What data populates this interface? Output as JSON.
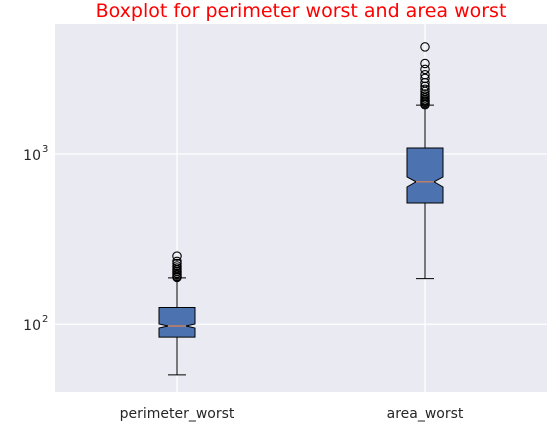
{
  "chart_data": {
    "type": "boxplot",
    "title": "Boxplot for perimeter worst and area worst",
    "xlabel": "",
    "ylabel": "",
    "yscale": "log",
    "ylim": [
      40,
      5800
    ],
    "grid": true,
    "notched": true,
    "categories": [
      "perimeter_worst",
      "area_worst"
    ],
    "y_ticks": [
      {
        "value": 100,
        "base": "10",
        "exp": "2"
      },
      {
        "value": 1000,
        "base": "10",
        "exp": "3"
      }
    ],
    "boxes": [
      {
        "name": "perimeter_worst",
        "whislo": 50.4,
        "q1": 84.1,
        "med": 97.7,
        "q3": 125.4,
        "whishi": 187.3,
        "notch_lo": 95.0,
        "notch_hi": 100.4,
        "fliers": [
          188.5,
          191.0,
          195.0,
          199.5,
          204.0,
          208.5,
          214.0,
          220.0,
          227.5,
          234.0,
          251.2
        ]
      },
      {
        "name": "area_worst",
        "whislo": 185.2,
        "q1": 515.3,
        "med": 686.5,
        "q3": 1084.0,
        "whishi": 1937.0,
        "notch_lo": 640.0,
        "notch_hi": 733.0,
        "fliers": [
          1946,
          1972,
          2010,
          2045,
          2080,
          2130,
          2190,
          2250,
          2330,
          2400,
          2500,
          2620,
          2780,
          2920,
          3140,
          3400,
          4254
        ]
      }
    ],
    "colors": {
      "background": "#eaeaf2",
      "grid": "#ffffff",
      "box_fill": "#4c72b0",
      "median": "#dd8452",
      "whisker": "#000000",
      "title": "#ff0000"
    }
  }
}
